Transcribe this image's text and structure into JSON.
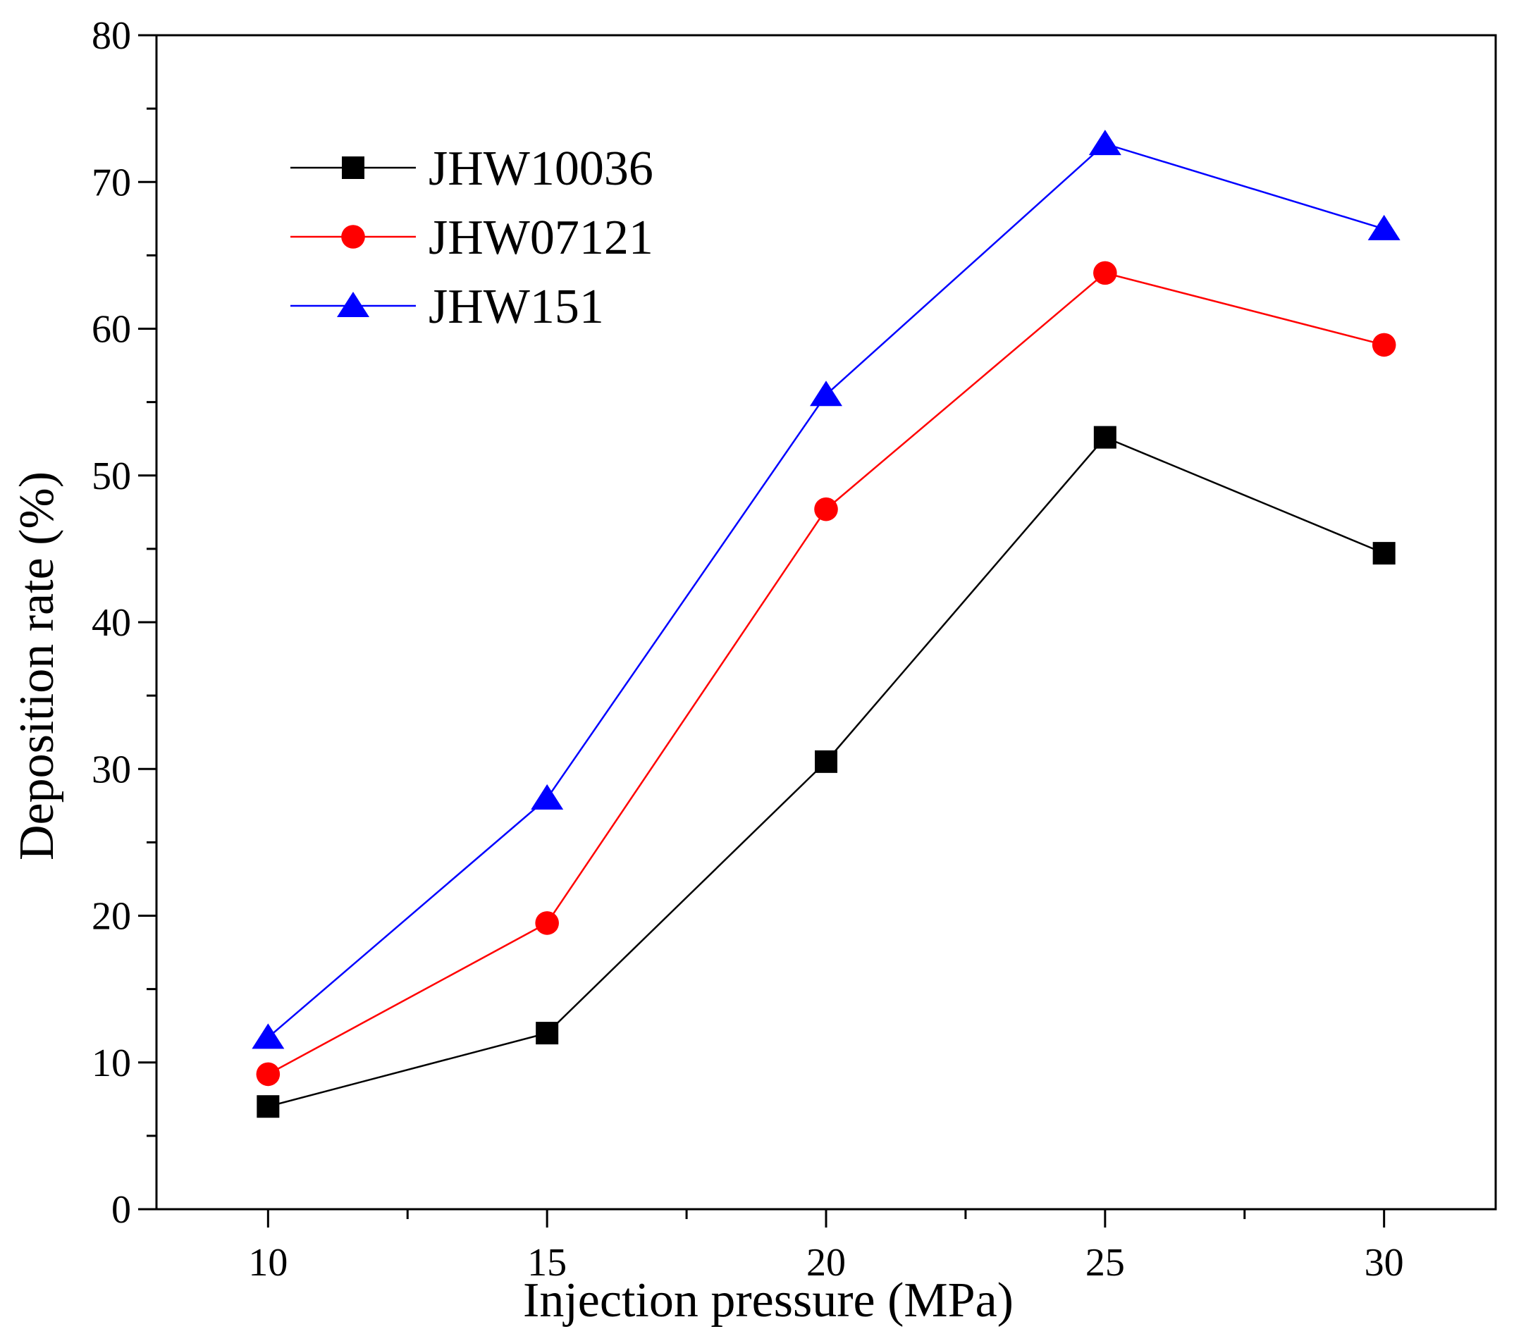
{
  "chart_data": {
    "type": "line",
    "title": "",
    "xlabel": "Injection pressure (MPa)",
    "ylabel": "Deposition rate (%)",
    "x": [
      10,
      15,
      20,
      25,
      30
    ],
    "xticks": [
      "10",
      "15",
      "20",
      "25",
      "30"
    ],
    "xlim": [
      8,
      32
    ],
    "ylim": [
      0,
      80
    ],
    "yticks": [
      "0",
      "10",
      "20",
      "30",
      "40",
      "50",
      "60",
      "70",
      "80"
    ],
    "grid": false,
    "legend_position": "top-left",
    "series": [
      {
        "name": "JHW10036",
        "marker": "square",
        "color": "#000000",
        "values": [
          7.0,
          12.0,
          30.5,
          52.6,
          44.7
        ]
      },
      {
        "name": "JHW07121",
        "marker": "circle",
        "color": "#ff0000",
        "values": [
          9.2,
          19.5,
          47.7,
          63.8,
          58.9
        ]
      },
      {
        "name": "JHW151",
        "marker": "triangle",
        "color": "#0000ff",
        "values": [
          11.7,
          28.0,
          55.5,
          72.6,
          66.8
        ]
      }
    ]
  }
}
